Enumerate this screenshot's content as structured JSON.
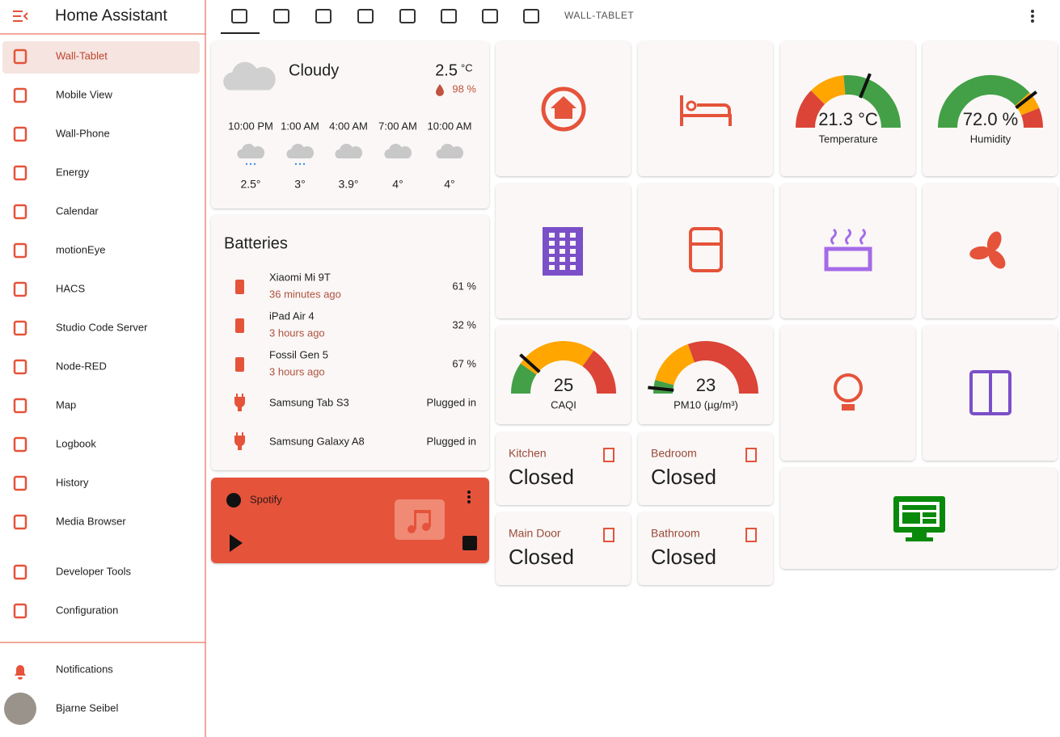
{
  "sidebar": {
    "title": "Home Assistant",
    "items": [
      "Wall-Tablet",
      "Mobile View",
      "Wall-Phone",
      "Energy",
      "Calendar",
      "motionEye",
      "HACS",
      "Studio Code Server",
      "Node-RED",
      "Map",
      "Logbook",
      "History",
      "Media Browser",
      "Developer Tools",
      "Configuration"
    ],
    "footer": [
      "Notifications",
      "Bjarne Seibel"
    ]
  },
  "toolbar": {
    "title": "WALL-TABLET"
  },
  "weather": {
    "condition": "Cloudy",
    "temperature": "2.5",
    "unit": "°C",
    "humidity": "98 %",
    "forecast": [
      {
        "time": "10:00 PM",
        "temp": "2.5°"
      },
      {
        "time": "1:00 AM",
        "temp": "3°"
      },
      {
        "time": "4:00 AM",
        "temp": "3.9°"
      },
      {
        "time": "7:00 AM",
        "temp": "4°"
      },
      {
        "time": "10:00 AM",
        "temp": "4°"
      }
    ]
  },
  "batteries": {
    "title": "Batteries",
    "items": [
      {
        "name": "Xiaomi Mi 9T",
        "time": "36 minutes ago",
        "state": "61 %"
      },
      {
        "name": "iPad Air 4",
        "time": "3 hours ago",
        "state": "32 %"
      },
      {
        "name": "Fossil Gen 5",
        "time": "3 hours ago",
        "state": "67 %"
      },
      {
        "name": "Samsung Tab S3",
        "state": "Plugged in"
      },
      {
        "name": "Samsung Galaxy A8",
        "state": "Plugged in"
      }
    ]
  },
  "media": {
    "name": "Spotify"
  },
  "gauges": [
    {
      "value": "21.3 °C",
      "label": "Temperature"
    },
    {
      "value": "72.0 %",
      "label": "Humidity"
    },
    {
      "value": "25",
      "label": "CAQI"
    },
    {
      "value": "23",
      "label": "PM10 (µg/m³)"
    }
  ],
  "doors": [
    {
      "name": "Kitchen",
      "state": "Closed"
    },
    {
      "name": "Bedroom",
      "state": "Closed"
    },
    {
      "name": "Main Door",
      "state": "Closed"
    },
    {
      "name": "Bathroom",
      "state": "Closed"
    }
  ]
}
